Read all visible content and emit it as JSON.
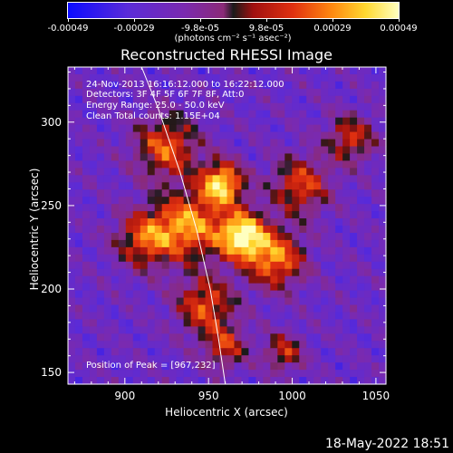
{
  "chart_data": {
    "type": "heatmap",
    "title": "Reconstructed RHESSI Image",
    "xlabel": "Heliocentric X (arcsec)",
    "ylabel": "Heliocentric Y (arcsec)",
    "xlim": [
      866,
      1056
    ],
    "ylim": [
      143,
      333
    ],
    "x_ticks": [
      "900",
      "950",
      "1000",
      "1050"
    ],
    "y_ticks": [
      "150",
      "200",
      "250",
      "300"
    ],
    "colorbar": {
      "ticks": [
        "-0.00049",
        "-0.00029",
        "-9.8e-05",
        "9.8e-05",
        "0.00029",
        "0.00049"
      ],
      "units": "(photons cm⁻² s⁻¹ asec⁻²)",
      "range": [
        -0.00049,
        0.00049
      ]
    },
    "annotations": {
      "time_range": "24-Nov-2013 16:16:12.000 to 16:22:12.000",
      "detectors": "Detectors: 3F 4F 5F 6F 7F 8F, Att:0",
      "energy": "Energy Range: 25.0 - 50.0 keV",
      "clean": "Clean    Total counts: 1.15E+04",
      "peak": "Position of Peak = [967,232]"
    },
    "peak": [
      967,
      232
    ],
    "sources": [
      {
        "x": 970,
        "y": 232,
        "sigma": 10,
        "value": 0.00049
      },
      {
        "x": 958,
        "y": 263,
        "sigma": 9,
        "value": 0.00043
      },
      {
        "x": 938,
        "y": 238,
        "sigma": 14,
        "value": 0.0003
      },
      {
        "x": 990,
        "y": 218,
        "sigma": 12,
        "value": 0.00028
      },
      {
        "x": 925,
        "y": 285,
        "sigma": 13,
        "value": 0.00022
      },
      {
        "x": 912,
        "y": 230,
        "sigma": 12,
        "value": 0.0002
      },
      {
        "x": 1005,
        "y": 262,
        "sigma": 12,
        "value": 0.00018
      },
      {
        "x": 948,
        "y": 190,
        "sigma": 12,
        "value": 0.0002
      },
      {
        "x": 1035,
        "y": 290,
        "sigma": 10,
        "value": 0.00014
      },
      {
        "x": 995,
        "y": 162,
        "sigma": 8,
        "value": 0.00012
      },
      {
        "x": 960,
        "y": 165,
        "sigma": 9,
        "value": 0.00012
      }
    ],
    "limb_curve": [
      [
        910,
        333
      ],
      [
        920,
        308
      ],
      [
        933,
        270
      ],
      [
        943,
        235
      ],
      [
        951,
        200
      ],
      [
        956,
        170
      ],
      [
        960,
        143
      ]
    ]
  },
  "footer": {
    "date": "18-May-2022 18:51"
  },
  "colors": {
    "axis": "#ffffff",
    "limb": "#ffffff",
    "background": "#000000"
  }
}
